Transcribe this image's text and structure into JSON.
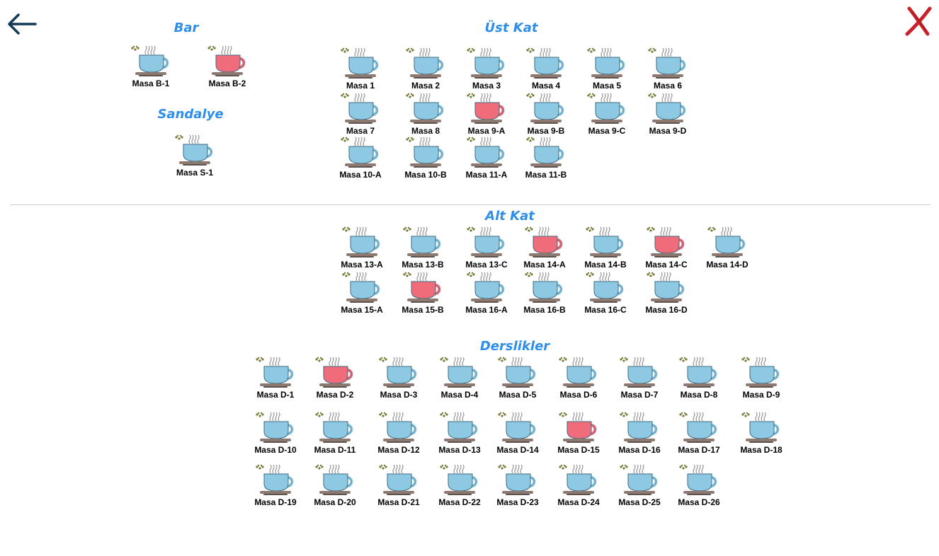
{
  "colors": {
    "free": "#8ec9e4",
    "occupied": "#f16c7b",
    "title": "#2e8ee8"
  },
  "nav": {
    "back_icon": "arrow-left-icon",
    "close_icon": "close-x-icon"
  },
  "sections": {
    "bar": {
      "title": "Bar",
      "tables": [
        {
          "label": "Masa B-1",
          "status": "free"
        },
        {
          "label": "Masa B-2",
          "status": "occupied"
        }
      ]
    },
    "sandalye": {
      "title": "Sandalye",
      "tables": [
        {
          "label": "Masa S-1",
          "status": "free"
        }
      ]
    },
    "ust_kat": {
      "title": "Üst Kat",
      "tables": [
        {
          "label": "Masa 1",
          "status": "free"
        },
        {
          "label": "Masa 2",
          "status": "free"
        },
        {
          "label": "Masa 3",
          "status": "free"
        },
        {
          "label": "Masa 4",
          "status": "free"
        },
        {
          "label": "Masa 5",
          "status": "free"
        },
        {
          "label": "Masa 6",
          "status": "free"
        },
        {
          "label": "Masa 7",
          "status": "free"
        },
        {
          "label": "Masa 8",
          "status": "free"
        },
        {
          "label": "Masa 9-A",
          "status": "occupied"
        },
        {
          "label": "Masa 9-B",
          "status": "free"
        },
        {
          "label": "Masa 9-C",
          "status": "free"
        },
        {
          "label": "Masa 9-D",
          "status": "free"
        },
        {
          "label": "Masa 10-A",
          "status": "free"
        },
        {
          "label": "Masa 10-B",
          "status": "free"
        },
        {
          "label": "Masa 11-A",
          "status": "free"
        },
        {
          "label": "Masa 11-B",
          "status": "free"
        }
      ]
    },
    "alt_kat": {
      "title": "Alt Kat",
      "tables": [
        {
          "label": "Masa 13-A",
          "status": "free"
        },
        {
          "label": "Masa 13-B",
          "status": "free"
        },
        {
          "label": "Masa 13-C",
          "status": "free"
        },
        {
          "label": "Masa 14-A",
          "status": "occupied"
        },
        {
          "label": "Masa 14-B",
          "status": "free"
        },
        {
          "label": "Masa 14-C",
          "status": "occupied"
        },
        {
          "label": "Masa 14-D",
          "status": "free"
        },
        {
          "label": "Masa 15-A",
          "status": "free"
        },
        {
          "label": "Masa 15-B",
          "status": "occupied"
        },
        {
          "label": "Masa 16-A",
          "status": "free"
        },
        {
          "label": "Masa 16-B",
          "status": "free"
        },
        {
          "label": "Masa 16-C",
          "status": "free"
        },
        {
          "label": "Masa 16-D",
          "status": "free"
        }
      ]
    },
    "derslikler": {
      "title": "Derslikler",
      "tables": [
        {
          "label": "Masa D-1",
          "status": "free"
        },
        {
          "label": "Masa D-2",
          "status": "occupied"
        },
        {
          "label": "Masa D-3",
          "status": "free"
        },
        {
          "label": "Masa D-4",
          "status": "free"
        },
        {
          "label": "Masa D-5",
          "status": "free"
        },
        {
          "label": "Masa D-6",
          "status": "free"
        },
        {
          "label": "Masa D-7",
          "status": "free"
        },
        {
          "label": "Masa D-8",
          "status": "free"
        },
        {
          "label": "Masa D-9",
          "status": "free"
        },
        {
          "label": "Masa D-10",
          "status": "free"
        },
        {
          "label": "Masa D-11",
          "status": "free"
        },
        {
          "label": "Masa D-12",
          "status": "free"
        },
        {
          "label": "Masa D-13",
          "status": "free"
        },
        {
          "label": "Masa D-14",
          "status": "free"
        },
        {
          "label": "Masa D-15",
          "status": "occupied"
        },
        {
          "label": "Masa D-16",
          "status": "free"
        },
        {
          "label": "Masa D-17",
          "status": "free"
        },
        {
          "label": "Masa D-18",
          "status": "free"
        },
        {
          "label": "Masa D-19",
          "status": "free"
        },
        {
          "label": "Masa D-20",
          "status": "free"
        },
        {
          "label": "Masa D-21",
          "status": "free"
        },
        {
          "label": "Masa D-22",
          "status": "free"
        },
        {
          "label": "Masa D-23",
          "status": "free"
        },
        {
          "label": "Masa D-24",
          "status": "free"
        },
        {
          "label": "Masa D-25",
          "status": "free"
        },
        {
          "label": "Masa D-26",
          "status": "free"
        }
      ]
    }
  }
}
